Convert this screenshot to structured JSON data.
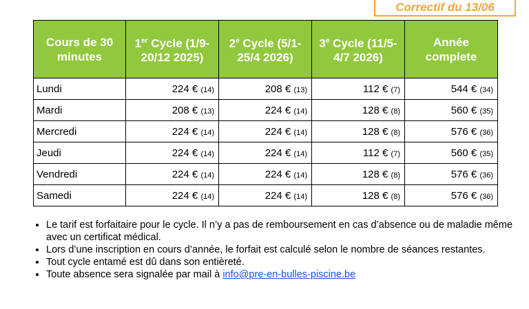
{
  "banner": {
    "correctif": "Correctif du 13/06"
  },
  "table": {
    "headers": [
      {
        "main": "Cours de 30 minutes"
      },
      {
        "num": "1",
        "sup": "er",
        "main": " Cycle (1/9-20/12 2025)"
      },
      {
        "num": "2",
        "sup": "e",
        "main": " Cycle (5/1-25/4 2026)"
      },
      {
        "num": "3",
        "sup": "e",
        "main": " Cycle (11/5-4/7 2026)"
      },
      {
        "main": "Année complete"
      }
    ],
    "rows": [
      {
        "day": "Lundi",
        "c1": "224 €",
        "n1": "(14)",
        "c2": "208 €",
        "n2": "(13)",
        "c3": "112 €",
        "n3": "(7)",
        "y": "544 €",
        "ny": "(34)"
      },
      {
        "day": "Mardi",
        "c1": "208 €",
        "n1": "(13)",
        "c2": "224 €",
        "n2": "(14)",
        "c3": "128 €",
        "n3": "(8)",
        "y": "560 €",
        "ny": "(35)"
      },
      {
        "day": "Mercredi",
        "c1": "224 €",
        "n1": "(14)",
        "c2": "224 €",
        "n2": "(14)",
        "c3": "128 €",
        "n3": "(8)",
        "y": "576 €",
        "ny": "(36)"
      },
      {
        "day": "Jeudi",
        "c1": "224 €",
        "n1": "(14)",
        "c2": "224 €",
        "n2": "(14)",
        "c3": "112 €",
        "n3": "(7)",
        "y": "560 €",
        "ny": "(35)"
      },
      {
        "day": "Vendredi",
        "c1": "224 €",
        "n1": "(14)",
        "c2": "224 €",
        "n2": "(14)",
        "c3": "128 €",
        "n3": "(8)",
        "y": "576 €",
        "ny": "(36)"
      },
      {
        "day": "Samedi",
        "c1": "224 €",
        "n1": "(14)",
        "c2": "224 €",
        "n2": "(14)",
        "c3": "128 €",
        "n3": "(8)",
        "y": "576 €",
        "ny": "(36)"
      }
    ]
  },
  "notes": [
    "Le tarif est forfaitaire pour le cycle. Il n’y a pas de remboursement en cas d’absence ou de maladie même avec un certificat médical.",
    "Lors d’une inscription en cours d’année, le forfait est calculé selon le nombre de séances restantes.",
    "Tout cycle entamé est dû dans son entièreté."
  ],
  "contact": {
    "prefix": "Toute absence sera signalée par mail à ",
    "email": "info@pre-en-bulles-piscine.be"
  },
  "colors": {
    "header_bg": "#92c83e",
    "accent": "#f3a43a",
    "link": "#1a4fd6"
  }
}
